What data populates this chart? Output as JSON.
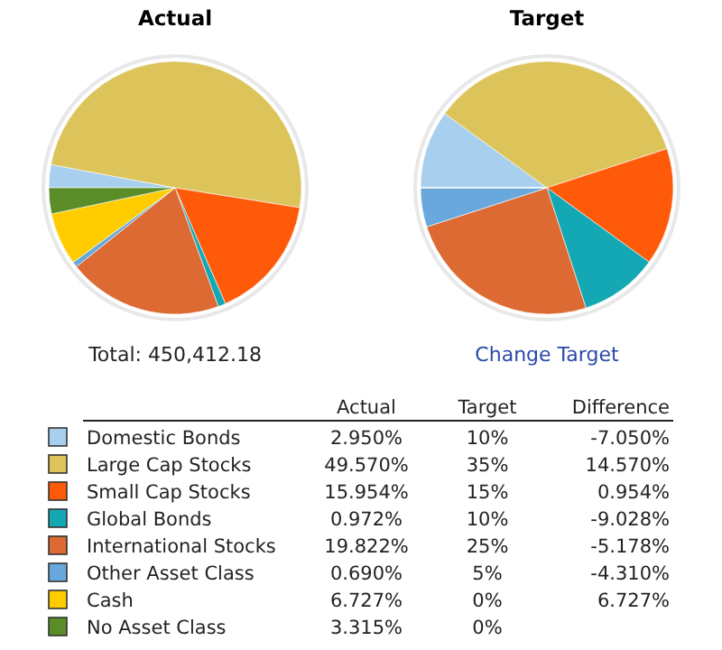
{
  "chart_data": [
    {
      "type": "pie",
      "title": "Actual",
      "categories": [
        "Domestic Bonds",
        "Large Cap Stocks",
        "Small Cap Stocks",
        "Global Bonds",
        "International Stocks",
        "Other Asset Class",
        "Cash",
        "No Asset Class"
      ],
      "values": [
        2.95,
        49.57,
        15.954,
        0.972,
        19.822,
        0.69,
        6.727,
        3.315
      ],
      "colors": [
        "#a8d0ee",
        "#dcc35a",
        "#ff5a0a",
        "#14a8b4",
        "#dc6a32",
        "#68a8dc",
        "#ffcc00",
        "#5a8c28"
      ],
      "value_labels": [
        "2.950%",
        "49.570%",
        "15.954%",
        "0.972%",
        "19.822%",
        "0.690%",
        "6.727%",
        "3.315%"
      ],
      "legend": "bottom",
      "annotations": [
        "Total: 450,412.18"
      ]
    },
    {
      "type": "pie",
      "title": "Target",
      "categories": [
        null,
        null,
        null,
        null,
        null,
        null,
        null,
        null
      ],
      "values": [
        10,
        35,
        15,
        10,
        25,
        5,
        0,
        0
      ],
      "colors": [
        "#a8d0ee",
        "#dcc35a",
        "#ff5a0a",
        "#14a8b4",
        "#dc6a32",
        "#68a8dc",
        "#ffcc00",
        "#5a8c28"
      ],
      "annotations": [
        "Change Target",
        "10%",
        "35%",
        "15%",
        "10%",
        "25%",
        "5%",
        "0%",
        "0%"
      ]
    },
    {
      "type": "other",
      "annotations": [
        "Difference",
        "-7.050%",
        "14.570%",
        "0.954%",
        "-9.028%",
        "-5.178%",
        "-4.310%",
        "6.727%"
      ]
    }
  ]
}
